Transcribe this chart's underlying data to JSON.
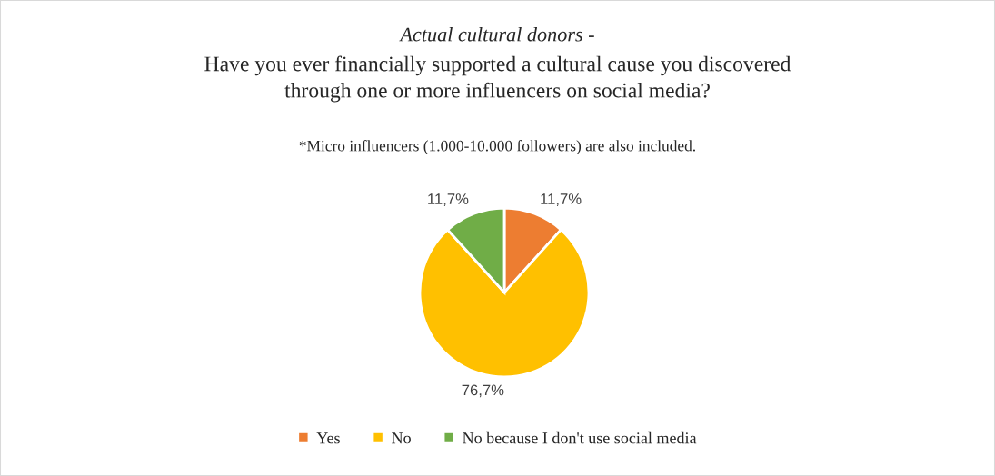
{
  "chart_data": {
    "type": "pie",
    "title": "Actual cultural donors -",
    "subtitle": "Have you ever financially supported a cultural cause you discovered\nthrough one or more influencers on social media?",
    "annotations": [
      "*Micro influencers (1.000-10.000 followers) are also included."
    ],
    "categories": [
      "Yes",
      "No",
      "No because I don't use social media"
    ],
    "values": [
      11.7,
      76.7,
      11.7
    ],
    "colors": [
      "#ed7d31",
      "#ffc000",
      "#70ad47"
    ],
    "value_labels": [
      "11,7%",
      "76,7%",
      "11,7%"
    ],
    "legend": "bottom"
  }
}
